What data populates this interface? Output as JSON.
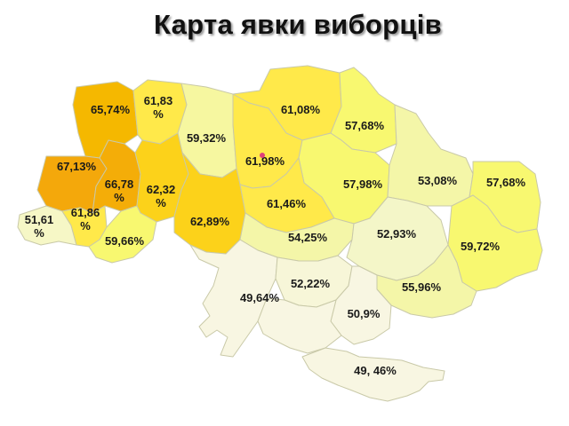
{
  "title": "Карта явки виборців",
  "regions": [
    {
      "id": "volyn",
      "label_lines": [
        "65,74%"
      ],
      "color": "#f5b800"
    },
    {
      "id": "rivne",
      "label_lines": [
        "61,83",
        "%"
      ],
      "color": "#ffe94a"
    },
    {
      "id": "zhytomyr",
      "label_lines": [
        "59,32%"
      ],
      "color": "#f6f7a0"
    },
    {
      "id": "kyiv-north",
      "label_lines": [
        "61,08%"
      ],
      "color": "#ffe94a"
    },
    {
      "id": "chernihiv",
      "label_lines": [
        "57,68%"
      ],
      "color": "#f8f870"
    },
    {
      "id": "lviv",
      "label_lines": [
        "67,13%"
      ],
      "color": "#f4a80b"
    },
    {
      "id": "ternopil",
      "label_lines": [
        "66,78",
        "%"
      ],
      "color": "#f4ad08"
    },
    {
      "id": "khmelnytskyi",
      "label_lines": [
        "62,32",
        "%"
      ],
      "color": "#fcd21a"
    },
    {
      "id": "kyiv",
      "label_lines": [
        "61,98%"
      ],
      "color": "#ffe94a"
    },
    {
      "id": "poltava",
      "label_lines": [
        "57,98%"
      ],
      "color": "#f8f870"
    },
    {
      "id": "sumy",
      "label_lines": [
        "53,08%"
      ],
      "color": "#f4f6a8"
    },
    {
      "id": "kharkiv",
      "label_lines": [
        "57,68%"
      ],
      "color": "#f8f870"
    },
    {
      "id": "zakarpattia",
      "label_lines": [
        "51,61",
        "%"
      ],
      "color": "#f6f7c6"
    },
    {
      "id": "ivano-frankivsk",
      "label_lines": [
        "61,86",
        "%"
      ],
      "color": "#ffe94a"
    },
    {
      "id": "chernivtsi",
      "label_lines": [
        "59,66%"
      ],
      "color": "#f8f870"
    },
    {
      "id": "vinnytsia",
      "label_lines": [
        "62,89%"
      ],
      "color": "#fcd21a"
    },
    {
      "id": "cherkasy",
      "label_lines": [
        "61,46%"
      ],
      "color": "#ffe94a"
    },
    {
      "id": "kirovohrad",
      "label_lines": [
        "54,25%"
      ],
      "color": "#f4f6a8"
    },
    {
      "id": "dnipro",
      "label_lines": [
        "52,93%"
      ],
      "color": "#f4f6c8"
    },
    {
      "id": "luhansk",
      "label_lines": [
        "59,72%"
      ],
      "color": "#f8f870"
    },
    {
      "id": "odesa",
      "label_lines": [
        "49,64%"
      ],
      "color": "#f8f6e2"
    },
    {
      "id": "mykolaiv",
      "label_lines": [
        "52,22%"
      ],
      "color": "#f7f6d8"
    },
    {
      "id": "donetsk",
      "label_lines": [
        "55,96%"
      ],
      "color": "#f4f6a8"
    },
    {
      "id": "zaporizhzhia",
      "label_lines": [
        "50,9%"
      ],
      "color": "#f8f6e2"
    },
    {
      "id": "kherson",
      "label_lines": [],
      "color": "#f8f6e2"
    },
    {
      "id": "crimea",
      "label_lines": [
        "49, 46%"
      ],
      "color": "#f8f6e2"
    }
  ],
  "capital_marker_color": "#e0407a"
}
